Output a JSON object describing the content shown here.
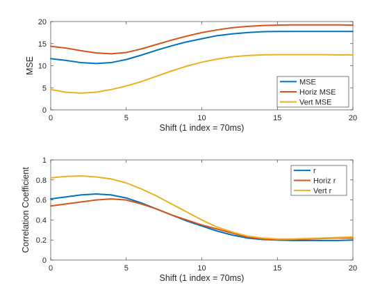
{
  "colors": {
    "blue": "#0072BD",
    "orange": "#D95319",
    "yellow": "#EDB120"
  },
  "chart_data": [
    {
      "type": "line",
      "xlabel": "Shift (1 index = 70ms)",
      "ylabel": "MSE",
      "xlim": [
        0,
        20
      ],
      "ylim": [
        0,
        20
      ],
      "xticks": [
        0,
        5,
        10,
        15,
        20
      ],
      "yticks": [
        0,
        5,
        10,
        15,
        20
      ],
      "grid": false,
      "legend_position": "lower-right",
      "x": [
        0,
        1,
        2,
        3,
        4,
        5,
        6,
        7,
        8,
        9,
        10,
        11,
        12,
        13,
        14,
        15,
        16,
        17,
        18,
        19,
        20
      ],
      "series": [
        {
          "name": "MSE",
          "color": "#0072BD",
          "values": [
            11.6,
            11.2,
            10.7,
            10.5,
            10.7,
            11.4,
            12.4,
            13.5,
            14.5,
            15.4,
            16.1,
            16.8,
            17.2,
            17.5,
            17.7,
            17.75,
            17.75,
            17.75,
            17.75,
            17.75,
            17.75
          ]
        },
        {
          "name": "Horiz MSE",
          "color": "#D95319",
          "values": [
            14.4,
            14.0,
            13.4,
            12.9,
            12.7,
            13.0,
            13.8,
            14.8,
            15.8,
            16.7,
            17.5,
            18.1,
            18.6,
            18.9,
            19.1,
            19.2,
            19.25,
            19.25,
            19.25,
            19.25,
            19.2
          ]
        },
        {
          "name": "Vert MSE",
          "color": "#EDB120",
          "values": [
            4.6,
            4.0,
            3.8,
            4.0,
            4.6,
            5.4,
            6.4,
            7.6,
            8.8,
            9.9,
            10.8,
            11.5,
            12.0,
            12.3,
            12.45,
            12.5,
            12.5,
            12.5,
            12.5,
            12.45,
            12.45
          ]
        }
      ]
    },
    {
      "type": "line",
      "xlabel": "Shift (1 index = 70ms)",
      "ylabel": "Correlation Coefficient",
      "xlim": [
        0,
        20
      ],
      "ylim": [
        0,
        1
      ],
      "xticks": [
        0,
        5,
        10,
        15,
        20
      ],
      "yticks": [
        0,
        0.2,
        0.4,
        0.6,
        0.8,
        1
      ],
      "grid": false,
      "legend_position": "top-right",
      "x": [
        0,
        1,
        2,
        3,
        4,
        5,
        6,
        7,
        8,
        9,
        10,
        11,
        12,
        13,
        14,
        15,
        16,
        17,
        18,
        19,
        20
      ],
      "series": [
        {
          "name": "r",
          "color": "#0072BD",
          "values": [
            0.61,
            0.63,
            0.65,
            0.66,
            0.65,
            0.62,
            0.57,
            0.51,
            0.45,
            0.39,
            0.34,
            0.29,
            0.25,
            0.22,
            0.205,
            0.2,
            0.195,
            0.195,
            0.195,
            0.195,
            0.2
          ]
        },
        {
          "name": "Horiz r",
          "color": "#D95319",
          "values": [
            0.54,
            0.56,
            0.58,
            0.6,
            0.61,
            0.6,
            0.56,
            0.51,
            0.45,
            0.4,
            0.35,
            0.31,
            0.27,
            0.23,
            0.21,
            0.205,
            0.205,
            0.21,
            0.215,
            0.22,
            0.22
          ]
        },
        {
          "name": "Vert r",
          "color": "#EDB120",
          "values": [
            0.82,
            0.835,
            0.84,
            0.83,
            0.81,
            0.77,
            0.71,
            0.64,
            0.56,
            0.48,
            0.4,
            0.33,
            0.28,
            0.24,
            0.22,
            0.21,
            0.21,
            0.215,
            0.22,
            0.225,
            0.23
          ]
        }
      ]
    }
  ]
}
